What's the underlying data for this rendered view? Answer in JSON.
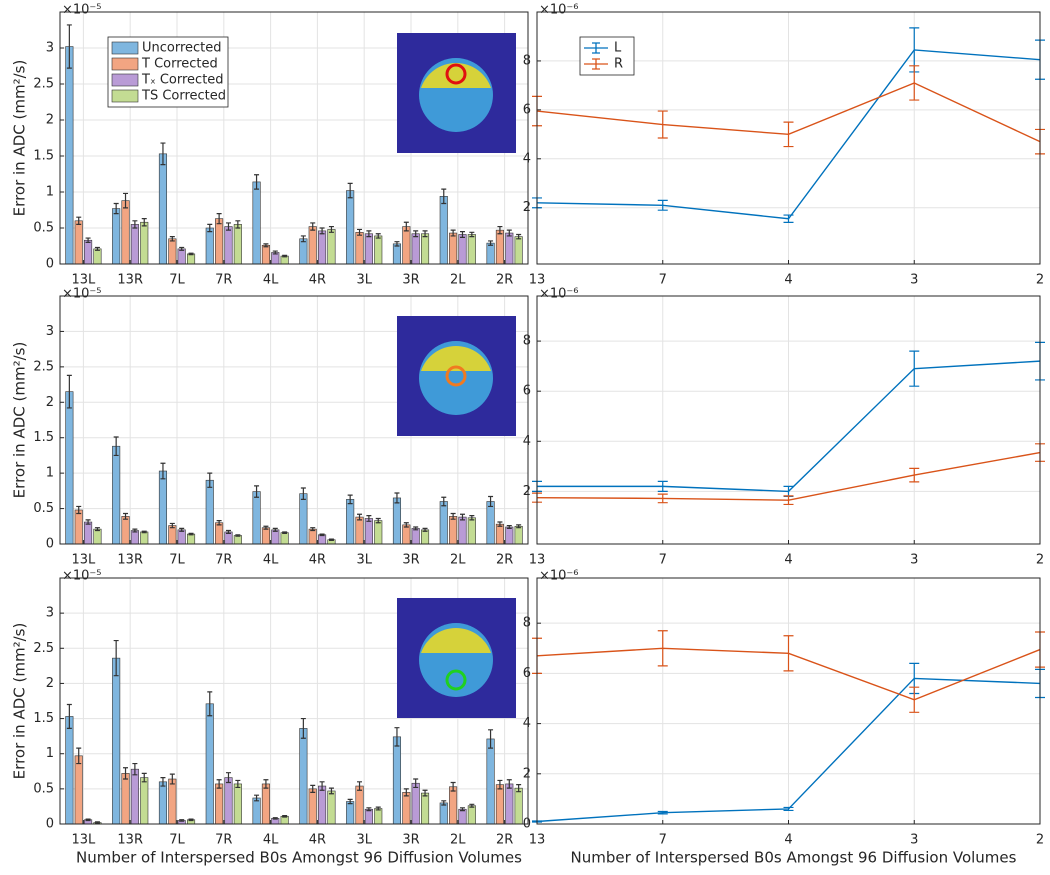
{
  "chart_data": [
    {
      "type": "bar",
      "exponent": "×10⁻⁵",
      "ylabel": "Error in ADC (mm²/s)",
      "categories": [
        "13L",
        "13R",
        "7L",
        "7R",
        "4L",
        "4R",
        "3L",
        "3R",
        "2L",
        "2R"
      ],
      "series": [
        {
          "name": "Uncorrected",
          "color": "#7fb6df",
          "values": [
            3.02,
            0.77,
            1.53,
            0.5,
            1.14,
            0.35,
            1.02,
            0.28,
            0.94,
            0.29
          ],
          "errors": [
            0.3,
            0.07,
            0.15,
            0.05,
            0.1,
            0.04,
            0.1,
            0.03,
            0.1,
            0.03
          ]
        },
        {
          "name": "T Corrected",
          "color": "#f2a582",
          "values": [
            0.6,
            0.88,
            0.35,
            0.63,
            0.26,
            0.52,
            0.44,
            0.52,
            0.43,
            0.47
          ],
          "errors": [
            0.05,
            0.1,
            0.03,
            0.07,
            0.02,
            0.05,
            0.04,
            0.06,
            0.04,
            0.05
          ]
        },
        {
          "name": "Tₓ Corrected",
          "color": "#b99bd6",
          "values": [
            0.33,
            0.55,
            0.21,
            0.52,
            0.16,
            0.46,
            0.42,
            0.42,
            0.41,
            0.43
          ],
          "errors": [
            0.03,
            0.05,
            0.02,
            0.05,
            0.02,
            0.04,
            0.04,
            0.04,
            0.04,
            0.04
          ]
        },
        {
          "name": "TS Corrected",
          "color": "#c3dc93",
          "values": [
            0.21,
            0.58,
            0.14,
            0.55,
            0.11,
            0.48,
            0.39,
            0.42,
            0.41,
            0.38
          ],
          "errors": [
            0.02,
            0.05,
            0.01,
            0.05,
            0.01,
            0.04,
            0.03,
            0.04,
            0.03,
            0.03
          ]
        }
      ],
      "ylim": [
        0,
        3.5
      ],
      "yticks": [
        0,
        0.5,
        1,
        1.5,
        2,
        2.5,
        3
      ],
      "grid": true,
      "legend": "upper left"
    },
    {
      "type": "line",
      "exponent": "×10⁻⁶",
      "categories": [
        "13",
        "7",
        "4",
        "3",
        "2"
      ],
      "series": [
        {
          "name": "L",
          "color": "#0072bd",
          "values": [
            2.2,
            2.1,
            1.55,
            8.45,
            8.05
          ],
          "errors": [
            0.2,
            0.2,
            0.15,
            0.9,
            0.8
          ]
        },
        {
          "name": "R",
          "color": "#d95319",
          "values": [
            5.95,
            5.4,
            5.0,
            7.1,
            4.7
          ],
          "errors": [
            0.6,
            0.55,
            0.5,
            0.7,
            0.5
          ]
        }
      ],
      "ylim": [
        -0.3,
        10
      ],
      "yticks": [
        2,
        4,
        6,
        8
      ],
      "grid": true,
      "legend": "upper left"
    },
    {
      "type": "bar",
      "exponent": "×10⁻⁵",
      "ylabel": "Error in ADC (mm²/s)",
      "categories": [
        "13L",
        "13R",
        "7L",
        "7R",
        "4L",
        "4R",
        "3L",
        "3R",
        "2L",
        "2R"
      ],
      "series": [
        {
          "name": "Uncorrected",
          "color": "#7fb6df",
          "values": [
            2.15,
            1.38,
            1.03,
            0.9,
            0.74,
            0.71,
            0.63,
            0.65,
            0.6,
            0.6
          ],
          "errors": [
            0.23,
            0.13,
            0.11,
            0.1,
            0.08,
            0.08,
            0.06,
            0.07,
            0.06,
            0.07
          ]
        },
        {
          "name": "T Corrected",
          "color": "#f2a582",
          "values": [
            0.48,
            0.39,
            0.26,
            0.3,
            0.23,
            0.21,
            0.38,
            0.27,
            0.39,
            0.28
          ],
          "errors": [
            0.05,
            0.04,
            0.03,
            0.03,
            0.02,
            0.02,
            0.04,
            0.03,
            0.04,
            0.03
          ]
        },
        {
          "name": "Tₓ Corrected",
          "color": "#b99bd6",
          "values": [
            0.31,
            0.19,
            0.2,
            0.17,
            0.2,
            0.13,
            0.36,
            0.22,
            0.38,
            0.24
          ],
          "errors": [
            0.03,
            0.02,
            0.02,
            0.02,
            0.02,
            0.01,
            0.04,
            0.02,
            0.04,
            0.02
          ]
        },
        {
          "name": "TS Corrected",
          "color": "#c3dc93",
          "values": [
            0.21,
            0.17,
            0.14,
            0.12,
            0.16,
            0.06,
            0.33,
            0.2,
            0.37,
            0.25
          ],
          "errors": [
            0.02,
            0.01,
            0.01,
            0.01,
            0.01,
            0.01,
            0.03,
            0.02,
            0.03,
            0.02
          ]
        }
      ],
      "ylim": [
        0,
        3.5
      ],
      "yticks": [
        0,
        0.5,
        1,
        1.5,
        2,
        2.5,
        3
      ],
      "grid": true
    },
    {
      "type": "line",
      "exponent": "×10⁻⁶",
      "categories": [
        "13",
        "7",
        "4",
        "3",
        "2"
      ],
      "series": [
        {
          "name": "L",
          "color": "#0072bd",
          "values": [
            2.2,
            2.2,
            2.0,
            6.9,
            7.2
          ],
          "errors": [
            0.2,
            0.2,
            0.2,
            0.7,
            0.75
          ]
        },
        {
          "name": "R",
          "color": "#d95319",
          "values": [
            1.75,
            1.72,
            1.65,
            2.65,
            3.55
          ],
          "errors": [
            0.18,
            0.17,
            0.17,
            0.27,
            0.35
          ]
        }
      ],
      "ylim": [
        -0.1,
        9.8
      ],
      "yticks": [
        2,
        4,
        6,
        8
      ],
      "grid": true
    },
    {
      "type": "bar",
      "exponent": "×10⁻⁵",
      "ylabel": "Error in ADC (mm²/s)",
      "xlabel": "Number of Interspersed B0s Amongst 96 Diffusion Volumes",
      "categories": [
        "13L",
        "13R",
        "7L",
        "7R",
        "4L",
        "4R",
        "3L",
        "3R",
        "2L",
        "2R"
      ],
      "series": [
        {
          "name": "Uncorrected",
          "color": "#7fb6df",
          "values": [
            1.53,
            2.36,
            0.6,
            1.71,
            0.37,
            1.36,
            0.32,
            1.24,
            0.3,
            1.21
          ],
          "errors": [
            0.17,
            0.25,
            0.06,
            0.17,
            0.04,
            0.14,
            0.03,
            0.13,
            0.03,
            0.13
          ]
        },
        {
          "name": "T Corrected",
          "color": "#f2a582",
          "values": [
            0.97,
            0.72,
            0.64,
            0.57,
            0.57,
            0.5,
            0.54,
            0.45,
            0.53,
            0.56
          ],
          "errors": [
            0.11,
            0.08,
            0.07,
            0.06,
            0.06,
            0.05,
            0.06,
            0.05,
            0.06,
            0.06
          ]
        },
        {
          "name": "Tₓ Corrected",
          "color": "#b99bd6",
          "values": [
            0.06,
            0.78,
            0.05,
            0.66,
            0.08,
            0.54,
            0.21,
            0.58,
            0.21,
            0.57
          ],
          "errors": [
            0.01,
            0.08,
            0.01,
            0.07,
            0.01,
            0.06,
            0.02,
            0.06,
            0.02,
            0.06
          ]
        },
        {
          "name": "TS Corrected",
          "color": "#c3dc93",
          "values": [
            0.02,
            0.66,
            0.06,
            0.57,
            0.11,
            0.47,
            0.22,
            0.44,
            0.26,
            0.51
          ],
          "errors": [
            0.01,
            0.06,
            0.01,
            0.05,
            0.01,
            0.04,
            0.02,
            0.04,
            0.02,
            0.05
          ]
        }
      ],
      "ylim": [
        0,
        3.5
      ],
      "yticks": [
        0,
        0.5,
        1,
        1.5,
        2,
        2.5,
        3
      ],
      "grid": true
    },
    {
      "type": "line",
      "exponent": "×10⁻⁶",
      "xlabel": "Number of Interspersed B0s Amongst 96 Diffusion Volumes",
      "categories": [
        "13",
        "7",
        "4",
        "3",
        "2"
      ],
      "series": [
        {
          "name": "L",
          "color": "#0072bd",
          "values": [
            0.1,
            0.45,
            0.6,
            5.8,
            5.6
          ],
          "errors": [
            0.02,
            0.05,
            0.06,
            0.6,
            0.56
          ]
        },
        {
          "name": "R",
          "color": "#d95319",
          "values": [
            6.7,
            7.0,
            6.8,
            4.95,
            6.95
          ],
          "errors": [
            0.7,
            0.7,
            0.7,
            0.5,
            0.7
          ]
        }
      ],
      "ylim": [
        0,
        9.8
      ],
      "yticks": [
        0,
        2,
        4,
        6,
        8
      ],
      "grid": true
    }
  ]
}
